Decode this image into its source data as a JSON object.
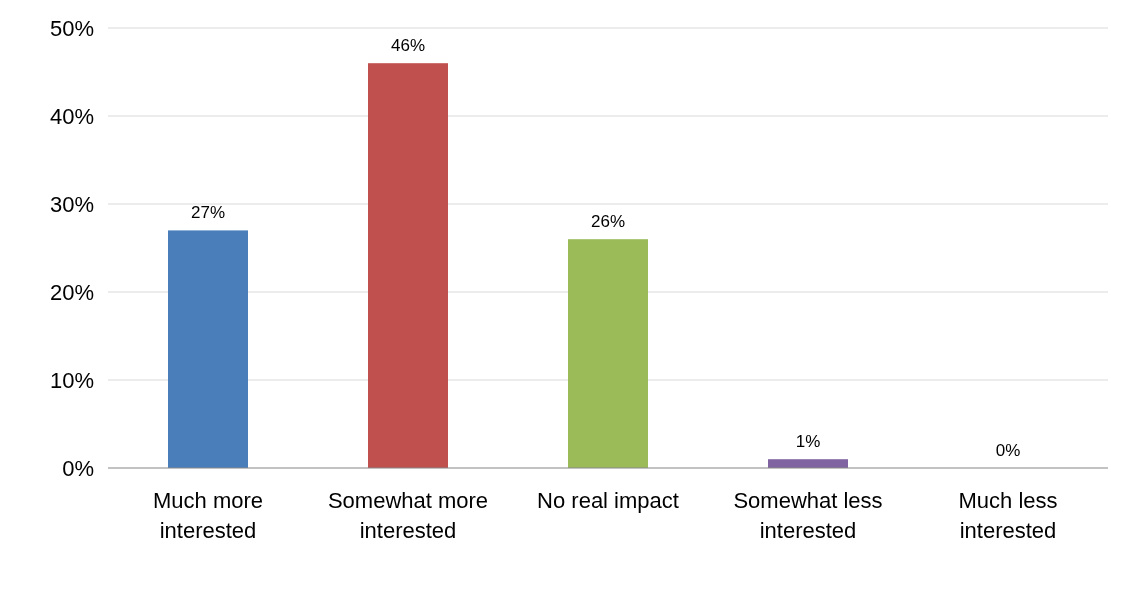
{
  "chart_data": {
    "type": "bar",
    "categories": [
      "Much more interested",
      "Somewhat more interested",
      "No real impact",
      "Somewhat less interested",
      "Much less interested"
    ],
    "values": [
      27,
      46,
      26,
      1,
      0
    ],
    "colors": [
      "#4a7ebb",
      "#c0504d",
      "#9bbb59",
      "#8064a2",
      "#4bacc6"
    ],
    "value_labels": [
      "27%",
      "46%",
      "26%",
      "1%",
      "0%"
    ],
    "ylim": [
      0,
      50
    ],
    "yticks": [
      {
        "value": 0,
        "label": "0%"
      },
      {
        "value": 10,
        "label": "10%"
      },
      {
        "value": 20,
        "label": "20%"
      },
      {
        "value": 30,
        "label": "30%"
      },
      {
        "value": 40,
        "label": "40%"
      },
      {
        "value": 50,
        "label": "50%"
      }
    ],
    "grid": "y"
  }
}
